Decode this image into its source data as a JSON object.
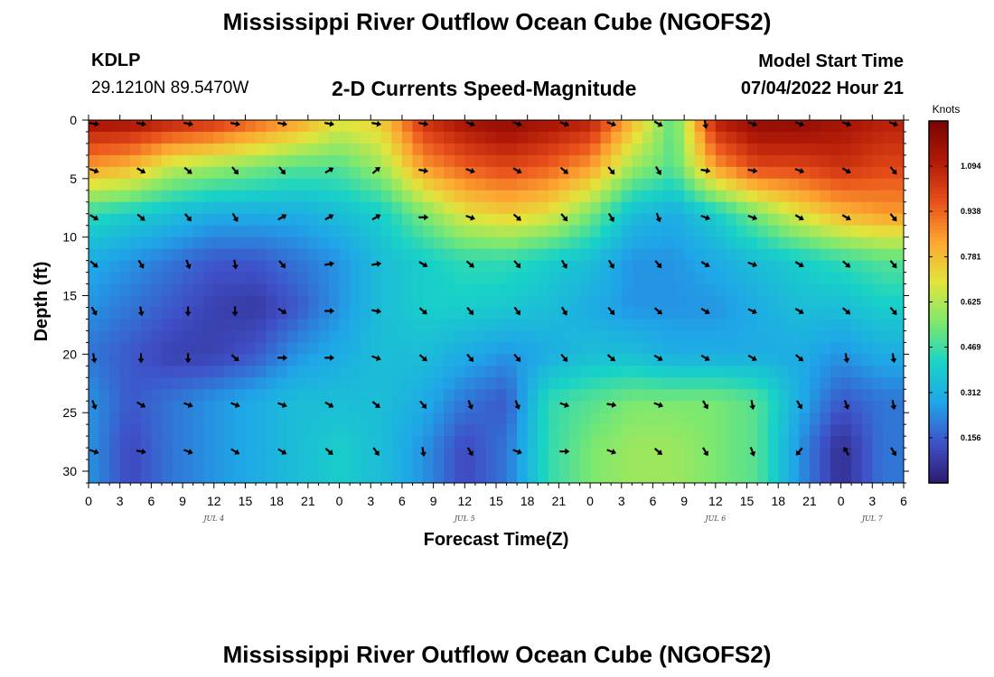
{
  "title": "Mississippi River Outflow Ocean Cube (NGOFS2)",
  "bottom_title": "Mississippi River Outflow Ocean Cube (NGOFS2)",
  "station": {
    "id": "KDLP",
    "coords": "29.1210N  89.5470W"
  },
  "subtitle": "2-D Currents Speed-Magnitude",
  "model": {
    "label": "Model Start Time",
    "value": "07/04/2022 Hour 21"
  },
  "chart_data": {
    "type": "heatmap",
    "title": "2-D Currents Speed-Magnitude",
    "xlabel": "Forecast Time(Z)",
    "ylabel": "Depth (ft)",
    "xlim": [
      0,
      78
    ],
    "ylim": [
      31,
      0
    ],
    "x_tick_labels": [
      "0",
      "3",
      "6",
      "9",
      "12",
      "15",
      "18",
      "21",
      "0",
      "3",
      "6",
      "9",
      "12",
      "15",
      "18",
      "21",
      "0",
      "3",
      "6",
      "9",
      "12",
      "15",
      "18",
      "21",
      "0",
      "3",
      "6"
    ],
    "y_ticks": [
      0,
      5,
      10,
      15,
      20,
      25,
      30
    ],
    "y_tick_labels": [
      "0",
      "5",
      "10",
      "15",
      "20",
      "25",
      "30"
    ],
    "date_labels": [
      {
        "text": "JUL 4",
        "hour": 12
      },
      {
        "text": "JUL 5",
        "hour": 36
      },
      {
        "text": "JUL 6",
        "hour": 60
      },
      {
        "text": "JUL 7",
        "hour": 75
      }
    ],
    "colorbar": {
      "unit": "Knots",
      "min": 0,
      "max": 1.25,
      "ticks": [
        1.094,
        0.938,
        0.781,
        0.625,
        0.469,
        0.312,
        0.156
      ],
      "tick_labels": [
        "1.094",
        "0.938",
        "0.781",
        "0.625",
        "0.469",
        "0.312",
        "0.156"
      ],
      "colors": [
        "#2b1a6e",
        "#3f51c8",
        "#1fa5e8",
        "#19d3c6",
        "#7de86f",
        "#e2e53c",
        "#fda631",
        "#e9501b",
        "#b11a07",
        "#7a0403"
      ]
    },
    "depths": [
      0,
      4,
      8,
      12,
      16,
      20,
      24,
      28
    ],
    "hours": [
      0,
      4,
      8,
      12,
      16,
      20,
      24,
      28,
      32,
      36,
      40,
      44,
      48,
      52,
      56,
      60,
      64,
      68,
      72,
      76
    ],
    "speed_knots": [
      [
        1.15,
        1.15,
        1.1,
        1.05,
        0.95,
        0.85,
        0.7,
        0.75,
        1.05,
        1.15,
        1.2,
        1.15,
        1.1,
        0.8,
        0.5,
        1.1,
        1.2,
        1.2,
        1.15,
        1.1
      ],
      [
        0.85,
        0.8,
        0.65,
        0.6,
        0.55,
        0.5,
        0.5,
        0.6,
        0.85,
        0.95,
        1.0,
        0.95,
        0.85,
        0.6,
        0.5,
        0.85,
        1.0,
        1.0,
        1.05,
        1.0
      ],
      [
        0.45,
        0.4,
        0.35,
        0.3,
        0.3,
        0.3,
        0.35,
        0.4,
        0.55,
        0.7,
        0.75,
        0.7,
        0.55,
        0.35,
        0.3,
        0.4,
        0.55,
        0.7,
        0.8,
        0.85
      ],
      [
        0.3,
        0.25,
        0.2,
        0.15,
        0.15,
        0.2,
        0.25,
        0.35,
        0.4,
        0.45,
        0.45,
        0.4,
        0.35,
        0.25,
        0.25,
        0.3,
        0.35,
        0.4,
        0.45,
        0.5
      ],
      [
        0.25,
        0.2,
        0.15,
        0.1,
        0.08,
        0.15,
        0.25,
        0.35,
        0.4,
        0.4,
        0.38,
        0.35,
        0.3,
        0.25,
        0.25,
        0.25,
        0.3,
        0.35,
        0.35,
        0.4
      ],
      [
        0.2,
        0.15,
        0.1,
        0.1,
        0.15,
        0.25,
        0.3,
        0.35,
        0.35,
        0.3,
        0.25,
        0.3,
        0.35,
        0.35,
        0.3,
        0.3,
        0.3,
        0.3,
        0.25,
        0.3
      ],
      [
        0.25,
        0.15,
        0.2,
        0.25,
        0.3,
        0.35,
        0.35,
        0.35,
        0.3,
        0.2,
        0.15,
        0.45,
        0.5,
        0.55,
        0.55,
        0.55,
        0.5,
        0.3,
        0.15,
        0.2
      ],
      [
        0.25,
        0.12,
        0.2,
        0.25,
        0.3,
        0.35,
        0.4,
        0.35,
        0.25,
        0.12,
        0.2,
        0.45,
        0.55,
        0.6,
        0.6,
        0.55,
        0.5,
        0.25,
        0.05,
        0.2
      ]
    ],
    "arrows": {
      "hours": [
        0,
        4.5,
        9,
        13.5,
        18,
        22.5,
        27,
        31.5,
        36,
        40.5,
        45,
        49.5,
        54,
        58.5,
        63,
        67.5,
        72,
        76.5
      ],
      "depths": [
        0,
        4,
        8,
        12,
        16,
        20,
        24,
        28
      ],
      "direction_deg": [
        [
          100,
          100,
          100,
          100,
          100,
          100,
          100,
          100,
          110,
          110,
          110,
          110,
          120,
          170,
          110,
          110,
          110,
          110
        ],
        [
          110,
          120,
          130,
          140,
          140,
          60,
          50,
          100,
          110,
          120,
          130,
          140,
          150,
          100,
          100,
          110,
          120,
          140
        ],
        [
          120,
          130,
          140,
          150,
          60,
          60,
          60,
          90,
          110,
          130,
          140,
          150,
          160,
          110,
          110,
          120,
          120,
          140
        ],
        [
          130,
          150,
          160,
          170,
          140,
          80,
          80,
          120,
          130,
          140,
          150,
          150,
          140,
          120,
          110,
          120,
          130,
          140
        ],
        [
          150,
          170,
          180,
          180,
          120,
          90,
          100,
          130,
          140,
          145,
          150,
          140,
          130,
          120,
          115,
          120,
          130,
          140
        ],
        [
          170,
          180,
          180,
          130,
          90,
          90,
          110,
          130,
          140,
          140,
          140,
          130,
          120,
          120,
          120,
          130,
          170,
          170
        ],
        [
          160,
          120,
          110,
          110,
          110,
          120,
          130,
          140,
          160,
          160,
          110,
          100,
          110,
          150,
          170,
          150,
          160,
          170
        ],
        [
          110,
          100,
          110,
          120,
          120,
          130,
          145,
          170,
          150,
          110,
          90,
          110,
          130,
          150,
          160,
          220,
          330,
          150
        ]
      ]
    }
  }
}
